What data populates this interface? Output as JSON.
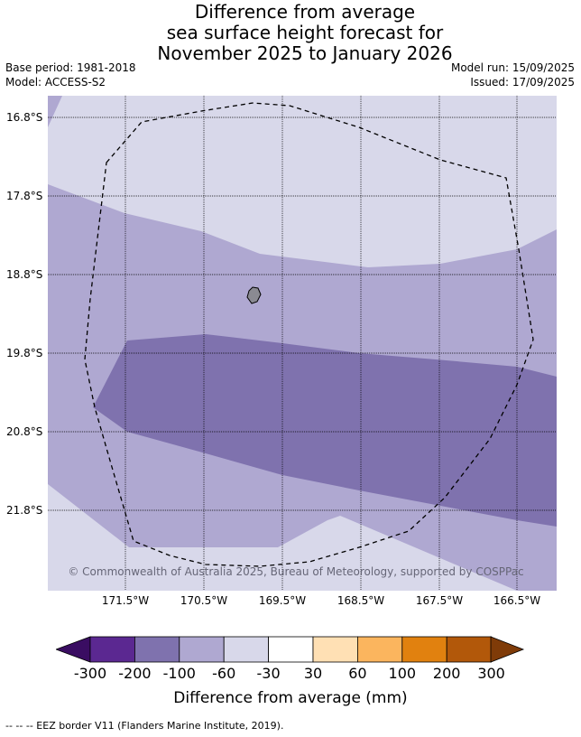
{
  "title": {
    "line1": "Difference from average",
    "line2": "sea surface height forecast for",
    "line3": "November 2025 to January 2026"
  },
  "info": {
    "base_period": "Base period: 1981-2018",
    "model": "Model: ACCESS-S2",
    "model_run": "Model run: 15/09/2025",
    "issued": "Issued: 17/09/2025"
  },
  "map": {
    "latitudes": [
      "16.8°S",
      "17.8°S",
      "18.8°S",
      "19.8°S",
      "20.8°S",
      "21.8°S"
    ],
    "longitudes": [
      "171.5°W",
      "170.5°W",
      "169.5°W",
      "168.5°W",
      "167.5°W",
      "166.5°W"
    ],
    "copyright": "© Commonwealth of Australia 2025, Bureau of Meteorology, supported by COSPPac",
    "colors": {
      "band_minus_30_to_minus_60": "#d8d8ea",
      "band_minus_60_to_minus_100": "#afa8d1",
      "band_minus_100_to_minus_200": "#7f72ae",
      "island": "#8a8a92"
    }
  },
  "colorbar": {
    "labels": [
      "-300",
      "-200",
      "-100",
      "-60",
      "-30",
      "30",
      "60",
      "100",
      "200",
      "300"
    ],
    "colors": [
      "#5b2891",
      "#7f72ae",
      "#afa8d1",
      "#d8d8ea",
      "#ffffff",
      "#ffe0b4",
      "#fbb55e",
      "#e1810f",
      "#b2580a"
    ],
    "low_extend_color": "#3a0d62",
    "high_extend_color": "#7f3b08",
    "title": "Difference from average (mm)"
  },
  "footnote": "--  --  -- EEZ border V11 (Flanders Marine Institute, 2019)."
}
